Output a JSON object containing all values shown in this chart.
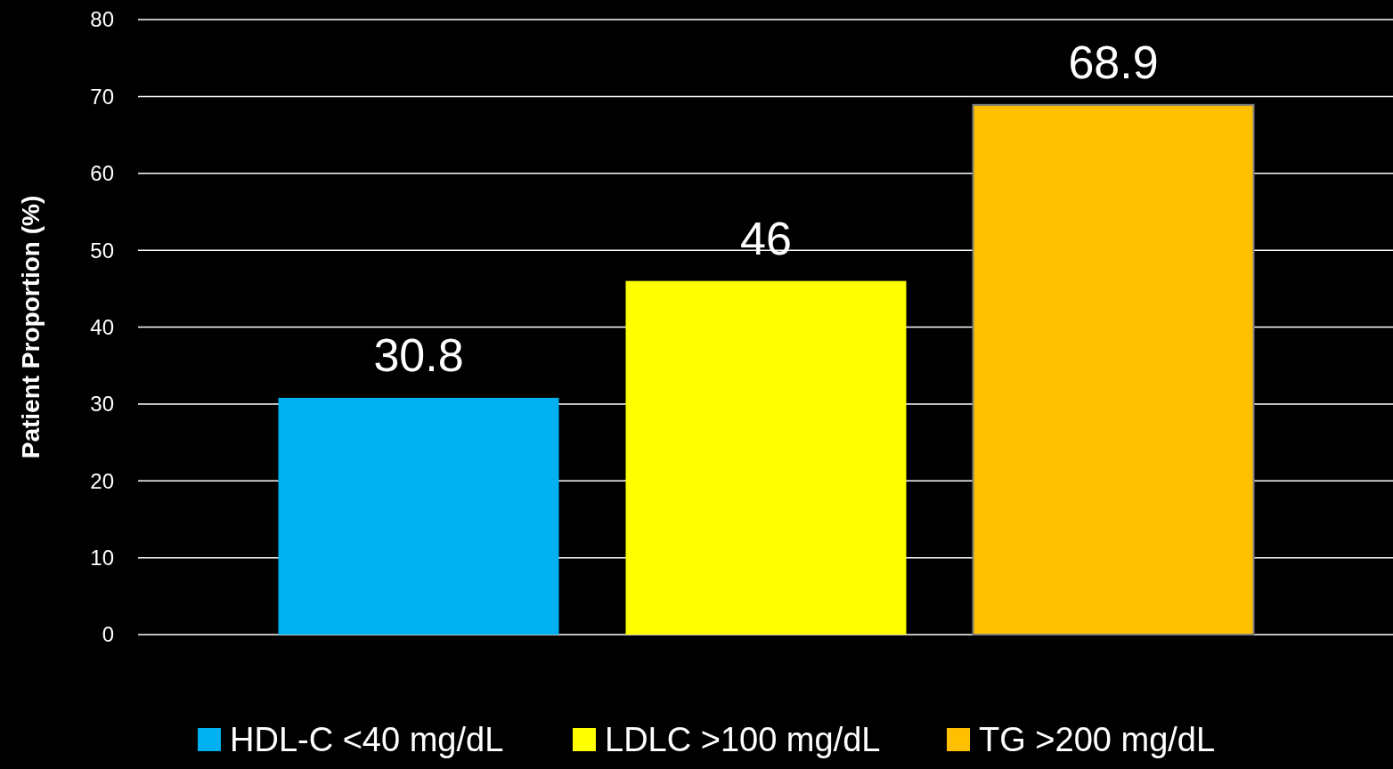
{
  "chart_data": {
    "type": "bar",
    "ylabel": "Patient Proportion (%)",
    "categories": [
      null,
      null,
      null
    ],
    "series": [
      {
        "name": "HDL-C <40 mg/dL",
        "color": "#00b0f0",
        "values": [
          30.8,
          null,
          null
        ]
      },
      {
        "name": "LDLC >100 mg/dL",
        "color": "#ffff00",
        "values": [
          null,
          46,
          null
        ]
      },
      {
        "name": "TG >200 mg/dL",
        "color": "#ffc000",
        "values": [
          null,
          null,
          68.9
        ]
      }
    ],
    "ylim": [
      0,
      80
    ],
    "yticks": [
      0,
      10,
      20,
      30,
      40,
      50,
      60,
      70,
      80
    ],
    "grid": "y",
    "legend": "bottom",
    "data_labels": true
  }
}
